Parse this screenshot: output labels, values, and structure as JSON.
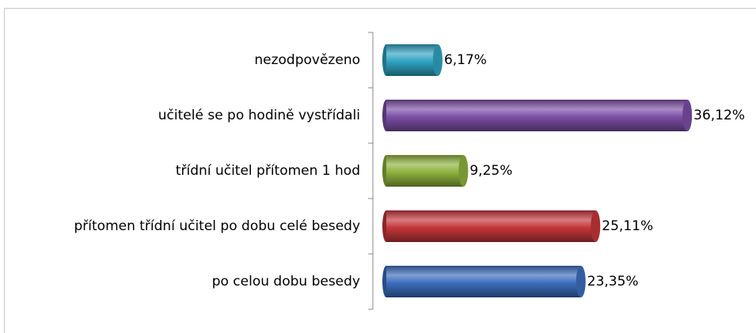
{
  "chart_data": {
    "type": "bar",
    "orientation": "horizontal",
    "categories": [
      "nezodpovězeno",
      "učitelé se po hodině vystřídali",
      "třídní učitel přítomen 1 hod",
      "přítomen třídní učitel po dobu celé besedy",
      "po celou dobu besedy"
    ],
    "values": [
      6.17,
      36.12,
      9.25,
      25.11,
      23.35
    ],
    "value_labels": [
      "6,17%",
      "36,12%",
      "9,25%",
      "25,11%",
      "23,35%"
    ],
    "colors": [
      "#2fa3c2",
      "#7b4ea6",
      "#8db23d",
      "#c3363a",
      "#3b6dbd"
    ],
    "xlim": [
      0,
      40
    ]
  }
}
